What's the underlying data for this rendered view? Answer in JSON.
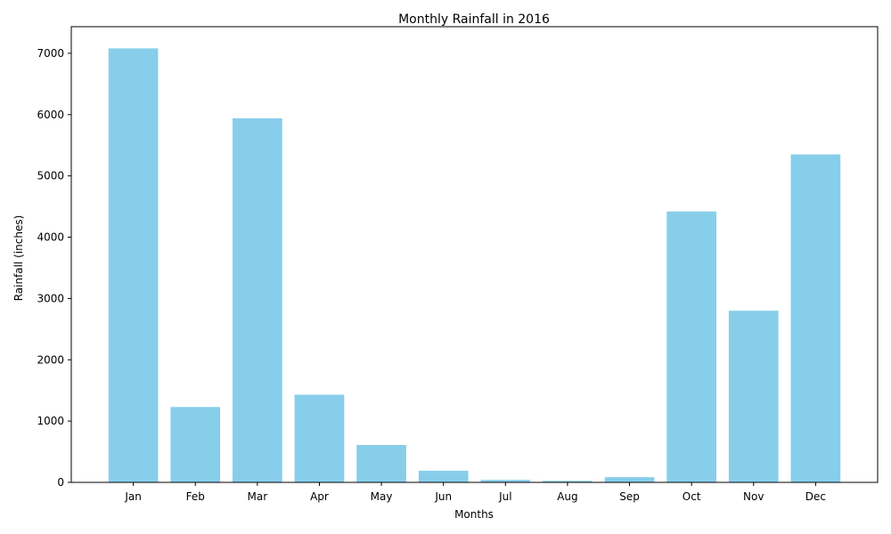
{
  "chart_data": {
    "type": "bar",
    "title": "Monthly Rainfall in 2016",
    "xlabel": "Months",
    "ylabel": "Rainfall (inches)",
    "categories": [
      "Jan",
      "Feb",
      "Mar",
      "Apr",
      "May",
      "Jun",
      "Jul",
      "Aug",
      "Sep",
      "Oct",
      "Nov",
      "Dec"
    ],
    "values": [
      7080,
      1230,
      5940,
      1430,
      610,
      190,
      40,
      25,
      85,
      4420,
      2800,
      5350
    ],
    "ylim": [
      0,
      7434
    ],
    "yticks": [
      0,
      1000,
      2000,
      3000,
      4000,
      5000,
      6000,
      7000
    ],
    "bar_color": "#87ceeb",
    "grid": false,
    "legend": "none"
  }
}
